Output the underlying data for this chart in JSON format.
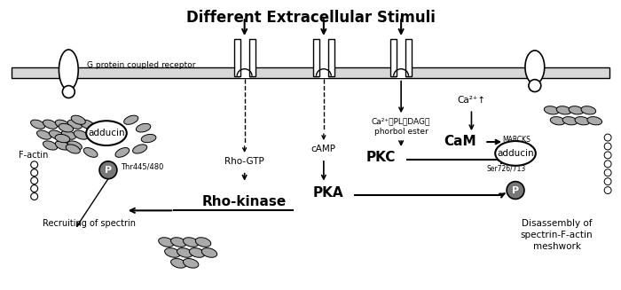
{
  "title": "Different Extracellular Stimuli",
  "title_fontsize": 12,
  "title_fontweight": "bold",
  "bg_color": "#ffffff",
  "gray_fill": "#aaaaaa",
  "dark_gray": "#777777",
  "labels": {
    "g_protein": "G protein coupled receptor",
    "f_actin": "F-actin",
    "adducin_left": "adducin",
    "thr": "Thr445/480",
    "rho_gtp": "Rho-GTP",
    "camp": "cAMP",
    "ca2_pl": "Ca²⁺、PL、DAG、",
    "phorbol": "phorbol ester",
    "ca2_up": "Ca²⁺↑",
    "pkc": "PKC",
    "pka": "PKA",
    "rho_kinase": "Rho-kinase",
    "recruiting": "Recruiting of spectrin",
    "cam": "CaM",
    "marcks": "MARCKS",
    "adducin_right": "adducin",
    "ser": "Ser726/713",
    "disassembly1": "Disassembly of",
    "disassembly2": "spectrin-F-actin",
    "disassembly3": "meshwork",
    "p_left": "P",
    "p_right": "P"
  }
}
